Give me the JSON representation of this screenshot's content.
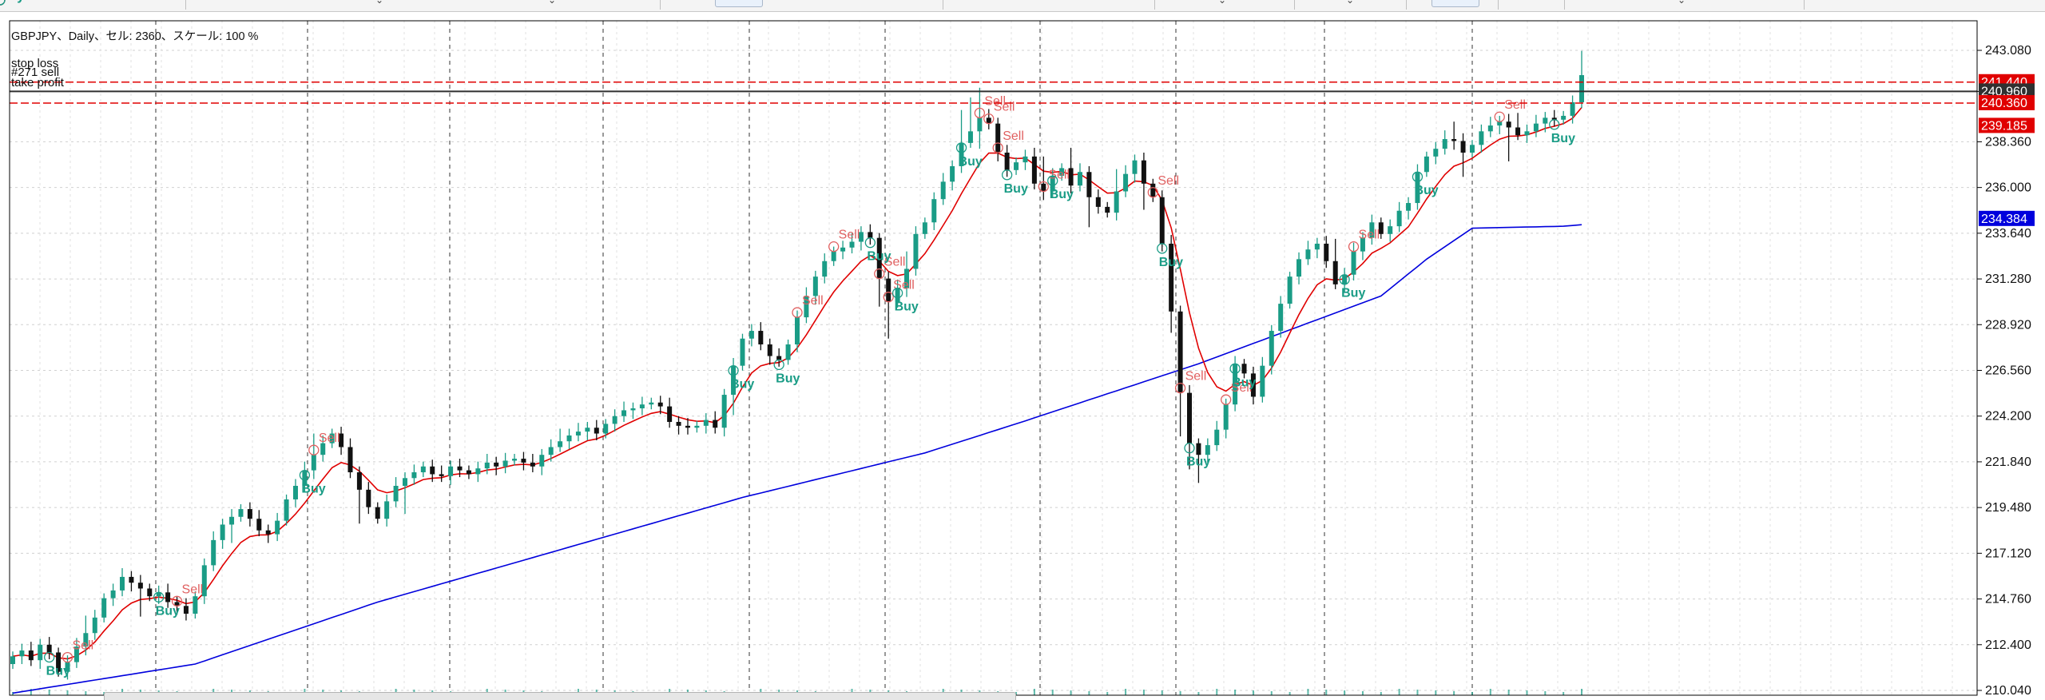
{
  "window": {
    "symbol_info": "GBPJPY、Daily、セル: 2360、スケール: 100 %"
  },
  "chart_data": {
    "type": "candlestick",
    "symbol": "GBPJPY",
    "timeframe": "Daily",
    "bars_shown": 2360,
    "scale": "100 %",
    "ylim": [
      209.5,
      243.5
    ],
    "y_ticks": [
      "243.080",
      "240.960",
      "238.360",
      "236.000",
      "233.640",
      "231.280",
      "228.920",
      "226.560",
      "224.200",
      "221.840",
      "219.480",
      "217.120",
      "214.760",
      "212.400",
      "210.040"
    ],
    "order_lines": [
      {
        "label": "stop loss",
        "price": 241.44,
        "color": "#e00000",
        "tag": "241.440",
        "style": "dashed"
      },
      {
        "label": "#271 sell",
        "price": 240.96,
        "color": "#303030",
        "tag": "240.960",
        "style": "solid"
      },
      {
        "label": "take profit",
        "price": 240.36,
        "color": "#e00000",
        "tag": "240.360",
        "style": "dashed"
      }
    ],
    "price_tags": [
      {
        "value": "239.185",
        "color": "#e00000"
      },
      {
        "value": "234.384",
        "color": "#0000dd"
      }
    ],
    "moving_averages": [
      {
        "color": "#e00000",
        "last": 239.185
      },
      {
        "color": "#0000dd",
        "last": 234.384
      }
    ],
    "candles_close": [
      211.8,
      212.1,
      211.6,
      212.4,
      212.0,
      211.0,
      211.5,
      212.3,
      213.0,
      213.8,
      214.8,
      215.2,
      215.9,
      215.6,
      215.3,
      214.9,
      215.1,
      214.6,
      214.4,
      214.0,
      214.9,
      216.5,
      217.8,
      218.6,
      219.0,
      219.4,
      218.9,
      218.3,
      218.1,
      218.8,
      219.9,
      220.6,
      221.4,
      222.2,
      222.8,
      223.3,
      222.6,
      221.3,
      220.4,
      219.5,
      218.9,
      219.8,
      220.6,
      221.0,
      221.3,
      221.6,
      221.2,
      221.1,
      221.6,
      221.4,
      221.2,
      221.5,
      221.8,
      221.6,
      221.9,
      222.0,
      221.8,
      221.6,
      222.2,
      222.6,
      222.9,
      223.2,
      223.4,
      223.6,
      223.3,
      223.8,
      224.2,
      224.5,
      224.6,
      224.8,
      224.9,
      224.7,
      223.9,
      223.7,
      223.6,
      223.7,
      224.0,
      223.6,
      225.3,
      226.8,
      228.2,
      228.6,
      227.9,
      227.3,
      227.1,
      227.9,
      229.3,
      230.4,
      231.4,
      232.2,
      232.7,
      232.9,
      233.2,
      233.7,
      233.4,
      231.3,
      230.1,
      230.8,
      231.8,
      233.6,
      234.2,
      235.4,
      236.3,
      237.1,
      238.3,
      238.9,
      239.6,
      239.3,
      237.8,
      236.9,
      237.3,
      237.6,
      236.2,
      235.8,
      236.6,
      237.0,
      236.1,
      236.8,
      235.5,
      235.0,
      234.7,
      235.8,
      236.7,
      237.4,
      236.2,
      235.5,
      233.1,
      229.6,
      225.4,
      222.8,
      222.2,
      222.7,
      223.5,
      224.8,
      226.9,
      226.4,
      225.2,
      226.8,
      228.6,
      230.0,
      231.4,
      232.3,
      232.8,
      233.1,
      232.2,
      231.0,
      231.5,
      232.7,
      233.4,
      234.2,
      233.6,
      234.0,
      234.8,
      235.2,
      236.8,
      237.6,
      238.0,
      238.5,
      238.4,
      237.8,
      238.2,
      238.9,
      239.2,
      239.4,
      239.1,
      238.7,
      238.9,
      239.3,
      239.6,
      239.5,
      239.7,
      240.4,
      241.8
    ],
    "signals": [
      {
        "type": "Sell",
        "label": "Sell"
      },
      {
        "type": "Buy",
        "label": "Buy"
      }
    ]
  }
}
